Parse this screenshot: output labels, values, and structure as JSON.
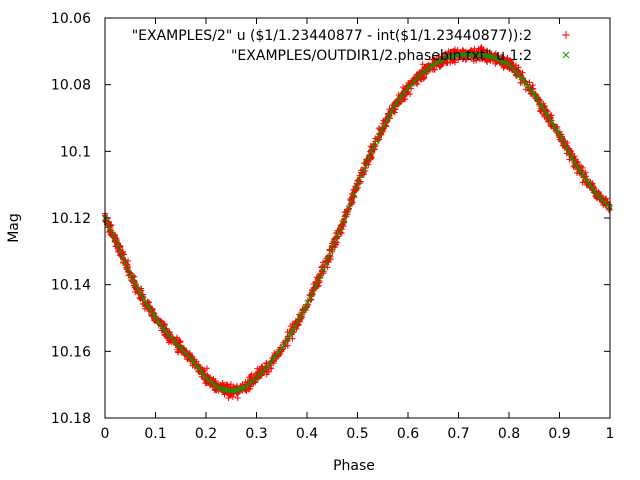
{
  "chart_data": {
    "type": "scatter",
    "xlabel": "Phase",
    "ylabel": "Mag",
    "xlim": [
      0,
      1
    ],
    "ylim": [
      10.18,
      10.06
    ],
    "y_inverted": true,
    "x_ticks": [
      "0",
      "0.1",
      "0.2",
      "0.3",
      "0.4",
      "0.5",
      "0.6",
      "0.7",
      "0.8",
      "0.9",
      "1"
    ],
    "x_tick_values": [
      0,
      0.1,
      0.2,
      0.3,
      0.4,
      0.5,
      0.6,
      0.7,
      0.8,
      0.9,
      1
    ],
    "y_ticks": [
      "10.06",
      "10.08",
      "10.1",
      "10.12",
      "10.14",
      "10.16",
      "10.18"
    ],
    "y_tick_values": [
      10.06,
      10.08,
      10.1,
      10.12,
      10.14,
      10.16,
      10.18
    ],
    "grid": false,
    "legend_position": "top-right",
    "series": [
      {
        "name": "\"EXAMPLES/2\" u ($1/1.23440877 - int($1/1.23440877)):2",
        "marker": "plus",
        "color": "#ff0000",
        "x": [
          0.0,
          0.025,
          0.05,
          0.075,
          0.1,
          0.125,
          0.15,
          0.175,
          0.2,
          0.225,
          0.25,
          0.275,
          0.3,
          0.325,
          0.35,
          0.375,
          0.4,
          0.425,
          0.45,
          0.475,
          0.5,
          0.525,
          0.55,
          0.575,
          0.6,
          0.625,
          0.65,
          0.675,
          0.7,
          0.725,
          0.75,
          0.775,
          0.8,
          0.825,
          0.85,
          0.875,
          0.9,
          0.925,
          0.95,
          0.975,
          1.0
        ],
        "y": [
          10.12,
          10.128,
          10.137,
          10.144,
          10.15,
          10.155,
          10.159,
          10.163,
          10.168,
          10.171,
          10.172,
          10.171,
          10.168,
          10.164,
          10.159,
          10.153,
          10.146,
          10.138,
          10.129,
          10.12,
          10.11,
          10.101,
          10.093,
          10.086,
          10.081,
          10.077,
          10.074,
          10.072,
          10.071,
          10.071,
          10.071,
          10.072,
          10.074,
          10.078,
          10.083,
          10.089,
          10.095,
          10.102,
          10.108,
          10.113,
          10.117
        ]
      },
      {
        "name": "\"EXAMPLES/OUTDIR1/2.phasebin.txt\" u 1:2",
        "marker": "cross",
        "color": "#00a000",
        "x": [
          0.0,
          0.025,
          0.05,
          0.075,
          0.1,
          0.125,
          0.15,
          0.175,
          0.2,
          0.225,
          0.25,
          0.275,
          0.3,
          0.325,
          0.35,
          0.375,
          0.4,
          0.425,
          0.45,
          0.475,
          0.5,
          0.525,
          0.55,
          0.575,
          0.6,
          0.625,
          0.65,
          0.675,
          0.7,
          0.725,
          0.75,
          0.775,
          0.8,
          0.825,
          0.85,
          0.875,
          0.9,
          0.925,
          0.95,
          0.975,
          1.0
        ],
        "y": [
          10.12,
          10.128,
          10.137,
          10.144,
          10.15,
          10.155,
          10.159,
          10.163,
          10.168,
          10.171,
          10.172,
          10.171,
          10.168,
          10.164,
          10.159,
          10.153,
          10.146,
          10.138,
          10.129,
          10.12,
          10.11,
          10.101,
          10.093,
          10.086,
          10.081,
          10.077,
          10.074,
          10.072,
          10.071,
          10.071,
          10.071,
          10.072,
          10.074,
          10.078,
          10.083,
          10.089,
          10.095,
          10.102,
          10.108,
          10.113,
          10.117
        ]
      }
    ]
  }
}
